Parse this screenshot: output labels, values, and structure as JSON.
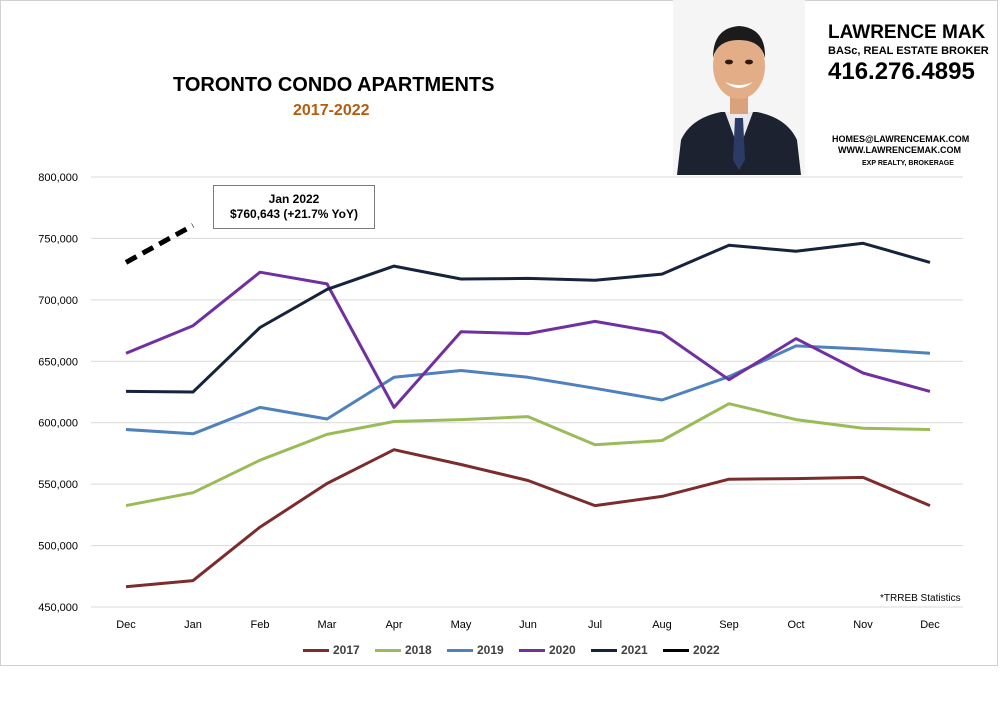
{
  "header": {
    "title": "TORONTO CONDO APARTMENTS",
    "subtitle": "2017-2022"
  },
  "agent": {
    "name": "LAWRENCE MAK",
    "role": "BASc, REAL ESTATE BROKER",
    "phone": "416.276.4895",
    "email": "HOMES@LAWRENCEMAK.COM",
    "website": "WWW.LAWRENCEMAK.COM",
    "brokerage": "EXP REALTY, BROKERAGE"
  },
  "callout": {
    "line1": "Jan 2022",
    "line2": "$760,643 (+21.7%  YoY)"
  },
  "source_note": "*TRREB Statistics",
  "chart_data": {
    "type": "line",
    "x": [
      "Dec",
      "Jan",
      "Feb",
      "Mar",
      "Apr",
      "May",
      "Jun",
      "Jul",
      "Aug",
      "Sep",
      "Oct",
      "Nov",
      "Dec"
    ],
    "ylim": [
      450000,
      800000
    ],
    "yticks": [
      450000,
      500000,
      550000,
      600000,
      650000,
      700000,
      750000,
      800000
    ],
    "ytick_labels": [
      "450,000",
      "500,000",
      "550,000",
      "600,000",
      "650,000",
      "700,000",
      "750,000",
      "800,000"
    ],
    "grid": true,
    "legend_position": "bottom",
    "series": [
      {
        "name": "2017",
        "color": "#7b2d2d",
        "values": [
          466500,
          471500,
          515000,
          550500,
          578000,
          566000,
          553000,
          532500,
          540000,
          554000,
          554500,
          555500,
          532500
        ]
      },
      {
        "name": "2018",
        "color": "#9bbb59",
        "values": [
          532500,
          543000,
          569500,
          590500,
          601000,
          602500,
          605000,
          582000,
          585500,
          615500,
          602500,
          595500,
          594500
        ]
      },
      {
        "name": "2019",
        "color": "#4f81bd",
        "values": [
          594500,
          591000,
          612500,
          603000,
          637000,
          642500,
          637000,
          628000,
          618500,
          637500,
          662500,
          660000,
          656500
        ]
      },
      {
        "name": "2020",
        "color": "#7030a0",
        "values": [
          656500,
          679000,
          722500,
          713000,
          612500,
          674000,
          672500,
          682500,
          673000,
          635000,
          668500,
          640500,
          625500
        ]
      },
      {
        "name": "2021",
        "color": "#17233d",
        "values": [
          625500,
          625000,
          677500,
          708500,
          727500,
          717000,
          717500,
          716000,
          721000,
          744500,
          739500,
          746000,
          730500
        ]
      },
      {
        "name": "2022",
        "color": "#000000",
        "dashed": true,
        "values": [
          730500,
          760643,
          null,
          null,
          null,
          null,
          null,
          null,
          null,
          null,
          null,
          null,
          null
        ]
      }
    ]
  }
}
